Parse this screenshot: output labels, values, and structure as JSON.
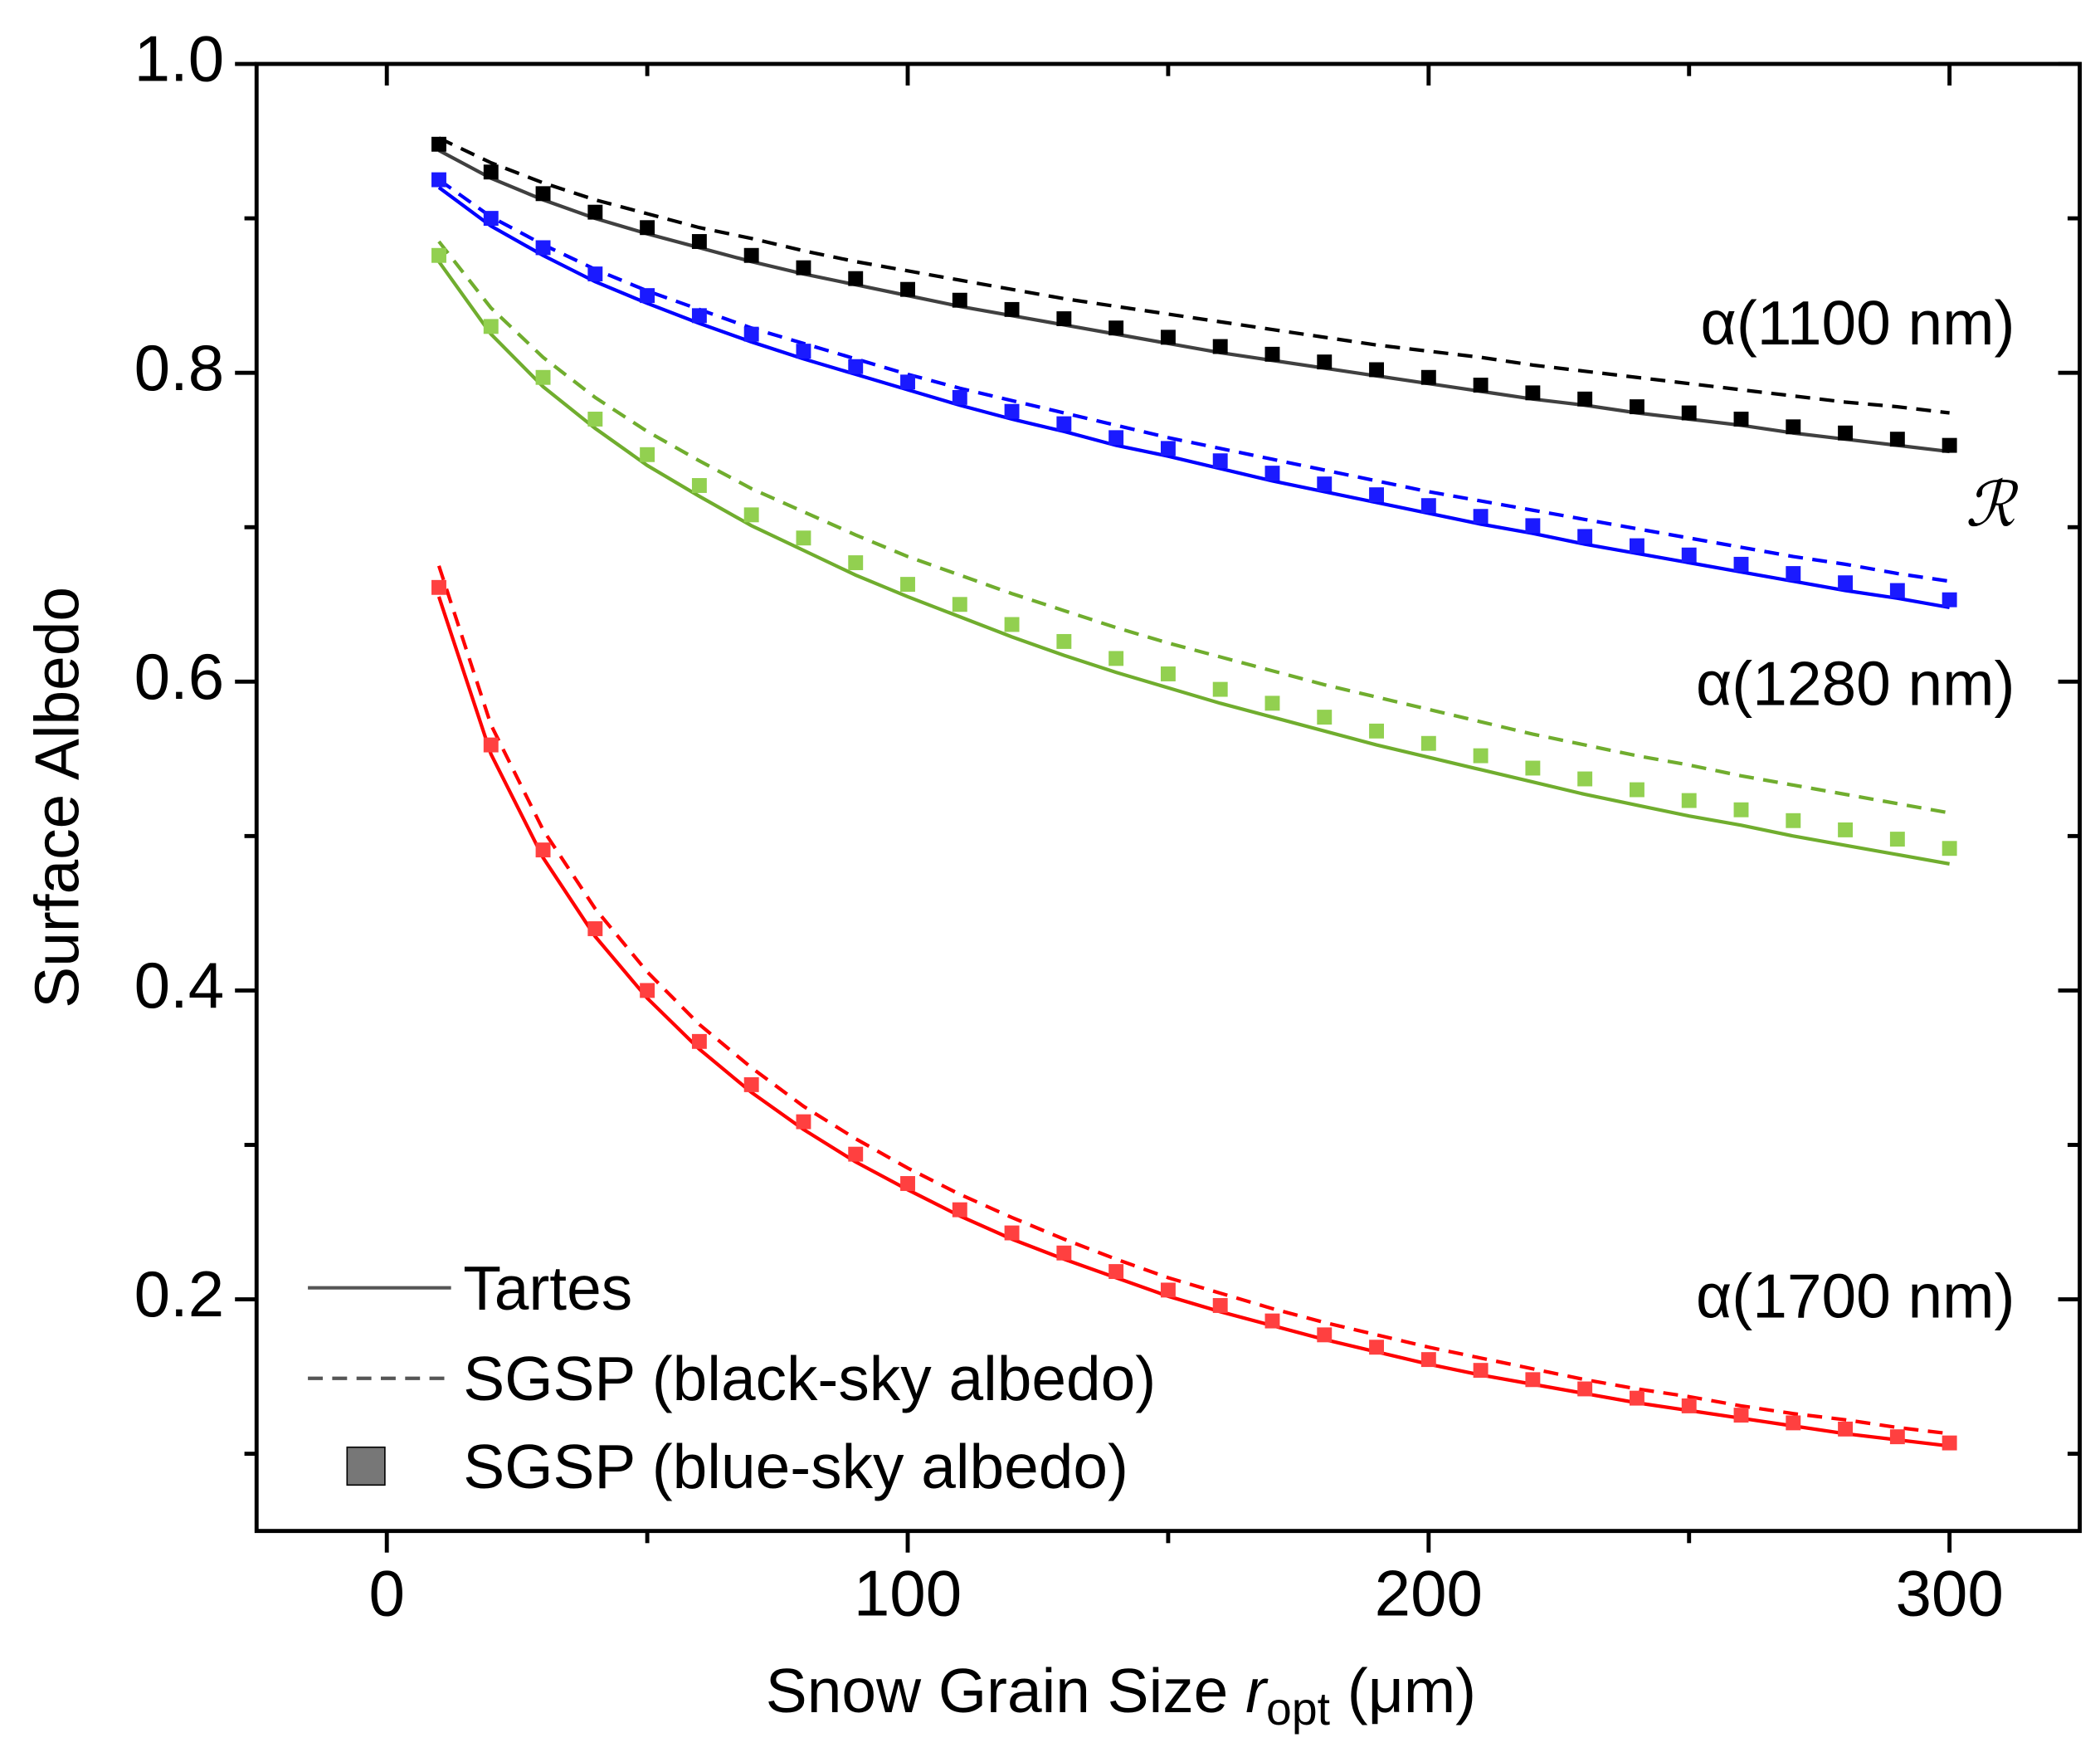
{
  "chart_data": {
    "type": "line",
    "ylabel": "Surface Albedo",
    "xlabel": {
      "before": "Snow Grain Size ",
      "var": "r",
      "sub": "opt",
      "after": " (μm)"
    },
    "xlim": [
      -25,
      325
    ],
    "xticks": [
      0,
      100,
      200,
      300
    ],
    "xminor": [
      50,
      150,
      250
    ],
    "ylim": [
      0.05,
      1.0
    ],
    "yticks": [
      0.2,
      0.4,
      0.6,
      0.8,
      {
        "value": 1,
        "label": "1.0"
      }
    ],
    "yminor": [
      0.1,
      0.3,
      0.5,
      0.7,
      0.9
    ],
    "x": [
      10,
      20,
      30,
      40,
      50,
      60,
      70,
      80,
      90,
      100,
      110,
      120,
      130,
      140,
      150,
      160,
      170,
      180,
      190,
      200,
      210,
      220,
      230,
      240,
      250,
      260,
      270,
      280,
      290,
      300
    ],
    "legend": [
      {
        "name": "Tartes",
        "style": "solid",
        "color": "#555555"
      },
      {
        "name": "SGSP (black-sky albedo)",
        "style": "dashed",
        "color": "#555555"
      },
      {
        "name": "SGSP (blue-sky albedo)",
        "style": "markers",
        "color": "#777777"
      }
    ],
    "groups": [
      {
        "label": "α(1100 nm)",
        "color": "#000000",
        "series": [
          {
            "style": "solid",
            "color": "#404040",
            "values": [
              0.944,
              0.926,
              0.912,
              0.9,
              0.89,
              0.881,
              0.872,
              0.864,
              0.857,
              0.85,
              0.843,
              0.837,
              0.831,
              0.825,
              0.819,
              0.813,
              0.808,
              0.803,
              0.798,
              0.793,
              0.788,
              0.783,
              0.779,
              0.774,
              0.77,
              0.766,
              0.761,
              0.757,
              0.753,
              0.749
            ]
          },
          {
            "style": "dashed",
            "color": "#000000",
            "values": [
              0.952,
              0.936,
              0.923,
              0.912,
              0.903,
              0.894,
              0.887,
              0.879,
              0.872,
              0.866,
              0.86,
              0.854,
              0.848,
              0.843,
              0.838,
              0.833,
              0.828,
              0.823,
              0.818,
              0.814,
              0.81,
              0.805,
              0.801,
              0.797,
              0.793,
              0.789,
              0.785,
              0.781,
              0.778,
              0.774
            ]
          },
          {
            "style": "markers",
            "color": "#000000",
            "values": [
              0.948,
              0.93,
              0.916,
              0.904,
              0.894,
              0.885,
              0.876,
              0.868,
              0.861,
              0.854,
              0.847,
              0.841,
              0.835,
              0.829,
              0.823,
              0.817,
              0.812,
              0.807,
              0.802,
              0.797,
              0.792,
              0.787,
              0.783,
              0.778,
              0.774,
              0.77,
              0.765,
              0.761,
              0.757,
              0.753
            ]
          }
        ]
      },
      {
        "label": "ℛ",
        "color": "#0000ff",
        "series": [
          {
            "style": "solid",
            "color": "#0000ff",
            "values": [
              0.92,
              0.895,
              0.876,
              0.859,
              0.845,
              0.832,
              0.82,
              0.809,
              0.799,
              0.789,
              0.779,
              0.77,
              0.762,
              0.753,
              0.746,
              0.738,
              0.73,
              0.723,
              0.716,
              0.709,
              0.702,
              0.696,
              0.689,
              0.683,
              0.677,
              0.671,
              0.665,
              0.659,
              0.654,
              0.648
            ]
          },
          {
            "style": "dashed",
            "color": "#0000ff",
            "values": [
              0.925,
              0.901,
              0.883,
              0.867,
              0.853,
              0.841,
              0.829,
              0.819,
              0.809,
              0.799,
              0.79,
              0.782,
              0.774,
              0.766,
              0.758,
              0.751,
              0.744,
              0.737,
              0.73,
              0.723,
              0.717,
              0.711,
              0.705,
              0.699,
              0.693,
              0.687,
              0.681,
              0.676,
              0.67,
              0.665
            ]
          },
          {
            "style": "markers",
            "color": "#1a1aff",
            "values": [
              0.925,
              0.9,
              0.881,
              0.864,
              0.85,
              0.837,
              0.825,
              0.814,
              0.804,
              0.794,
              0.784,
              0.775,
              0.767,
              0.758,
              0.751,
              0.743,
              0.735,
              0.728,
              0.721,
              0.714,
              0.707,
              0.701,
              0.694,
              0.688,
              0.682,
              0.676,
              0.67,
              0.664,
              0.659,
              0.653
            ]
          }
        ]
      },
      {
        "label": "α(1280 nm)",
        "color": "#70ad2e",
        "series": [
          {
            "style": "solid",
            "color": "#70ad2e",
            "values": [
              0.872,
              0.825,
              0.791,
              0.764,
              0.74,
              0.72,
              0.701,
              0.685,
              0.669,
              0.655,
              0.642,
              0.629,
              0.617,
              0.606,
              0.596,
              0.586,
              0.577,
              0.568,
              0.559,
              0.551,
              0.543,
              0.535,
              0.527,
              0.52,
              0.513,
              0.507,
              0.5,
              0.494,
              0.488,
              0.482
            ]
          },
          {
            "style": "dashed",
            "color": "#70ad2e",
            "values": [
              0.885,
              0.842,
              0.81,
              0.784,
              0.762,
              0.743,
              0.725,
              0.71,
              0.695,
              0.681,
              0.669,
              0.657,
              0.646,
              0.635,
              0.625,
              0.616,
              0.607,
              0.598,
              0.59,
              0.582,
              0.574,
              0.566,
              0.559,
              0.552,
              0.546,
              0.539,
              0.533,
              0.527,
              0.521,
              0.515
            ]
          },
          {
            "style": "markers",
            "color": "#92d050",
            "values": [
              0.876,
              0.83,
              0.797,
              0.77,
              0.747,
              0.727,
              0.708,
              0.693,
              0.677,
              0.663,
              0.65,
              0.637,
              0.626,
              0.615,
              0.605,
              0.595,
              0.586,
              0.577,
              0.568,
              0.56,
              0.552,
              0.544,
              0.537,
              0.53,
              0.523,
              0.517,
              0.51,
              0.504,
              0.498,
              0.492
            ]
          }
        ]
      },
      {
        "label": "α(1700 nm)",
        "color": "#ff0000",
        "series": [
          {
            "style": "solid",
            "color": "#ff0000",
            "values": [
              0.655,
              0.553,
              0.486,
              0.435,
              0.395,
              0.362,
              0.334,
              0.31,
              0.289,
              0.271,
              0.254,
              0.239,
              0.226,
              0.214,
              0.202,
              0.192,
              0.183,
              0.174,
              0.166,
              0.158,
              0.151,
              0.145,
              0.139,
              0.133,
              0.128,
              0.123,
              0.118,
              0.113,
              0.109,
              0.105
            ]
          },
          {
            "style": "dashed",
            "color": "#ff0000",
            "values": [
              0.675,
              0.572,
              0.504,
              0.453,
              0.412,
              0.378,
              0.35,
              0.325,
              0.304,
              0.285,
              0.268,
              0.253,
              0.239,
              0.226,
              0.214,
              0.204,
              0.194,
              0.185,
              0.177,
              0.169,
              0.162,
              0.155,
              0.148,
              0.142,
              0.137,
              0.131,
              0.126,
              0.122,
              0.117,
              0.113
            ]
          },
          {
            "style": "markers",
            "color": "#ff4040",
            "values": [
              0.661,
              0.559,
              0.491,
              0.44,
              0.4,
              0.367,
              0.339,
              0.315,
              0.294,
              0.275,
              0.258,
              0.243,
              0.23,
              0.218,
              0.206,
              0.196,
              0.186,
              0.177,
              0.169,
              0.161,
              0.154,
              0.148,
              0.142,
              0.136,
              0.131,
              0.125,
              0.12,
              0.116,
              0.111,
              0.107
            ]
          }
        ]
      }
    ]
  }
}
